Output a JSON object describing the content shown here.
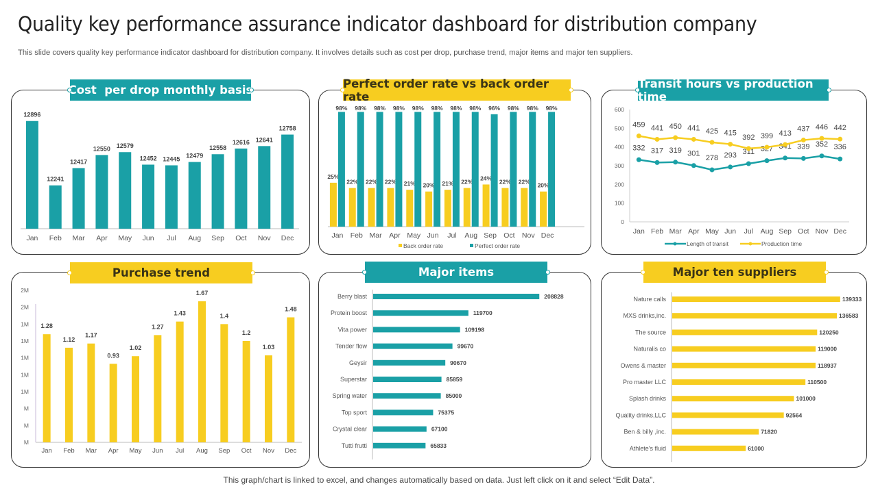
{
  "header": {
    "title": "Quality key performance assurance indicator dashboard for distribution company",
    "subtitle": "This slide covers quality key performance indicator dashboard for distribution company. It involves details such as cost per drop, purchase trend, major items and major ten suppliers."
  },
  "footer": {
    "note": "This graph/chart is linked to excel,  and changes automatically based on data. Just left click on it and select “Edit Data”."
  },
  "colors": {
    "teal": "#1aa0a6",
    "yellow": "#f7cd20",
    "text": "#333333"
  },
  "panels": {
    "cost": {
      "title": "Cost  per drop monthly basis"
    },
    "order": {
      "title": "Perfect order rate vs back order rate"
    },
    "transit": {
      "title": "Transit hours vs production time"
    },
    "purchase": {
      "title": "Purchase trend"
    },
    "items": {
      "title": "Major items"
    },
    "suppliers": {
      "title": "Major ten suppliers"
    }
  },
  "chart_data": [
    {
      "id": "cost",
      "type": "bar",
      "title": "Cost  per drop monthly basis",
      "categories": [
        "Jan",
        "Feb",
        "Mar",
        "Apr",
        "May",
        "Jun",
        "Jul",
        "Aug",
        "Sep",
        "Oct",
        "Nov",
        "Dec"
      ],
      "values": [
        12896,
        12241,
        12417,
        12550,
        12579,
        12452,
        12445,
        12479,
        12558,
        12616,
        12641,
        12758
      ],
      "data_labels": [
        "12896",
        "12241",
        "12417",
        "12550",
        "12579",
        "12452",
        "12445",
        "12479",
        "12558",
        "12616",
        "12641",
        "12758"
      ],
      "ylim": [
        11800,
        12950
      ],
      "grid": false
    },
    {
      "id": "order",
      "type": "bar",
      "title": "Perfect order rate vs back order rate",
      "categories": [
        "Jan",
        "Feb",
        "Mar",
        "Apr",
        "May",
        "Jun",
        "Jul",
        "Aug",
        "Sep",
        "Oct",
        "Nov",
        "Dec"
      ],
      "series": [
        {
          "name": "Back order rate",
          "values": [
            25,
            22,
            22,
            22,
            21,
            20,
            21,
            22,
            24,
            22,
            22,
            20
          ],
          "labels": [
            "25%",
            "22%",
            "22%",
            "22%",
            "21%",
            "20%",
            "21%",
            "22%",
            "24%",
            "22%",
            "22%",
            "20%"
          ]
        },
        {
          "name": "Perfect order rate",
          "values": [
            98,
            98,
            98,
            98,
            98,
            98,
            98,
            98,
            96,
            98,
            98,
            98
          ],
          "labels": [
            "98%",
            "98%",
            "98%",
            "98%",
            "98%",
            "98%",
            "98%",
            "98%",
            "96%",
            "98%",
            "98%",
            "98%"
          ]
        }
      ],
      "ylim": [
        0,
        100
      ],
      "legend": "bottom",
      "grid": false
    },
    {
      "id": "transit",
      "type": "line",
      "title": "Transit hours vs production time",
      "categories": [
        "Jan",
        "Feb",
        "Mar",
        "Apr",
        "May",
        "Jun",
        "Jul",
        "Aug",
        "Sep",
        "Oct",
        "Nov",
        "Dec"
      ],
      "series": [
        {
          "name": "Length of transit",
          "values": [
            332,
            317,
            319,
            301,
            278,
            293,
            311,
            327,
            341,
            339,
            352,
            336
          ]
        },
        {
          "name": "Production time",
          "values": [
            459,
            441,
            450,
            441,
            425,
            415,
            392,
            399,
            413,
            437,
            446,
            442
          ]
        }
      ],
      "yticks": [
        "0",
        "100",
        "200",
        "300",
        "400",
        "500",
        "600"
      ],
      "ylim": [
        0,
        600
      ],
      "legend": "bottom",
      "grid": false
    },
    {
      "id": "purchase",
      "type": "bar",
      "title": "Purchase trend",
      "categories": [
        "Jan",
        "Feb",
        "Mar",
        "Apr",
        "May",
        "Jun",
        "Jul",
        "Aug",
        "Sep",
        "Oct",
        "Nov",
        "Dec"
      ],
      "values": [
        1.28,
        1.12,
        1.17,
        0.93,
        1.02,
        1.27,
        1.43,
        1.67,
        1.4,
        1.2,
        1.03,
        1.48
      ],
      "data_labels": [
        "1.28",
        "1.12",
        "1.17",
        "0.93",
        "1.02",
        "1.27",
        "1.43",
        "1.67",
        "1.4",
        "1.2",
        "1.03",
        "1.48"
      ],
      "yticks": [
        "M",
        "M",
        "M",
        "1M",
        "1M",
        "1M",
        "1M",
        "1M",
        "2M",
        "2M"
      ],
      "ylim": [
        0,
        1.8
      ],
      "ylabel": "",
      "grid": false
    },
    {
      "id": "items",
      "type": "bar",
      "orientation": "horizontal",
      "title": "Major items",
      "categories": [
        "Berry blast",
        "Protein boost",
        "Vita power",
        "Tender flow",
        "Geysir",
        "Superstar",
        "Spring water",
        "Top sport",
        "Crystal clear",
        "Tutti frutti"
      ],
      "values": [
        208828,
        119700,
        109198,
        99670,
        90670,
        85859,
        85000,
        75375,
        67100,
        65833
      ],
      "data_labels": [
        "208828",
        "119700",
        "109198",
        "99670",
        "90670",
        "85859",
        "85000",
        "75375",
        "67100",
        "65833"
      ],
      "xlim": [
        0,
        250000
      ]
    },
    {
      "id": "suppliers",
      "type": "bar",
      "orientation": "horizontal",
      "title": "Major ten suppliers",
      "categories": [
        "Nature calls",
        "MXS drinks,inc.",
        "The source",
        "Naturalis co",
        "Owens & master",
        "Pro master LLC",
        "Splash drinks",
        "Quality drinks,LLC",
        "Ben & billy ,inc.",
        "Athlete's fluid"
      ],
      "values": [
        139333,
        136583,
        120250,
        119000,
        118937,
        110500,
        101000,
        92564,
        71820,
        61000
      ],
      "data_labels": [
        "139333",
        "136583",
        "120250",
        "119000",
        "118937",
        "110500",
        "101000",
        "92564",
        "71820",
        "61000"
      ],
      "xlim": [
        0,
        140000
      ]
    }
  ]
}
